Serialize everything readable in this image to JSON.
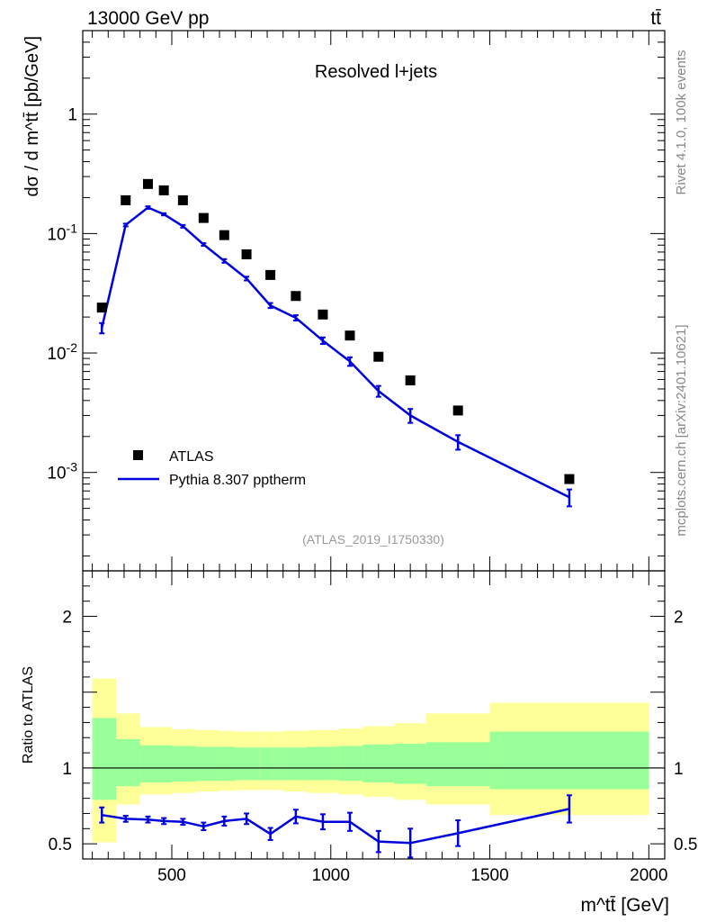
{
  "header": {
    "collision": "13000 GeV pp",
    "process": "tt̄",
    "rivet_info": "Rivet 4.1.0,  100k events",
    "site_info": "mcplots.cern.ch [arXiv:2401.10621]"
  },
  "chart_data": [
    {
      "type": "scatter",
      "title": "Resolved l+jets",
      "analysis_tag": "(ATLAS_2019_I1750330)",
      "ylabel": "dσ / d m^tt̄ [pb/GeV]",
      "yscale": "log",
      "ylim": [
        0.00015,
        5
      ],
      "xlim": [
        220,
        2050
      ],
      "ytick_labels": [
        "10^-3",
        "10^-2",
        "10^-1",
        "1"
      ],
      "ytick_values": [
        0.001,
        0.01,
        0.1,
        1
      ],
      "legend_position": "lower-left",
      "series": [
        {
          "name": "ATLAS",
          "kind": "markers",
          "color": "#000000",
          "x": [
            280,
            355,
            425,
            475,
            535,
            600,
            665,
            735,
            810,
            890,
            975,
            1060,
            1150,
            1250,
            1400,
            1750
          ],
          "y": [
            0.024,
            0.19,
            0.26,
            0.23,
            0.19,
            0.135,
            0.097,
            0.067,
            0.045,
            0.03,
            0.021,
            0.014,
            0.0093,
            0.0059,
            0.0033,
            0.00088
          ]
        },
        {
          "name": "Pythia 8.307 pptherm",
          "kind": "line",
          "color": "#0000dd",
          "x": [
            280,
            355,
            425,
            475,
            535,
            600,
            665,
            735,
            810,
            890,
            975,
            1060,
            1150,
            1250,
            1400,
            1750
          ],
          "y": [
            0.0162,
            0.118,
            0.165,
            0.145,
            0.115,
            0.081,
            0.059,
            0.042,
            0.025,
            0.0197,
            0.0127,
            0.0085,
            0.0048,
            0.003,
            0.0018,
            0.00062
          ],
          "yerr": [
            0.0016,
            0.003,
            0.004,
            0.003,
            0.003,
            0.002,
            0.002,
            0.0015,
            0.0012,
            0.001,
            0.0008,
            0.0007,
            0.0005,
            0.0004,
            0.00025,
            0.0001
          ]
        }
      ]
    },
    {
      "type": "line",
      "ylabel": "Ratio to ATLAS",
      "xlabel": "m^tt̄ [GeV]",
      "ylim": [
        0.4,
        2.3
      ],
      "xlim": [
        220,
        2050
      ],
      "ytick_labels": [
        "0.5",
        "1",
        "2"
      ],
      "ytick_values": [
        0.5,
        1,
        2
      ],
      "xtick_labels": [
        "500",
        "1000",
        "1500",
        "2000"
      ],
      "xtick_values": [
        500,
        1000,
        1500,
        2000
      ],
      "reference_line": 1,
      "uncertainty_bands": {
        "bin_edges": [
          250,
          325,
          400,
          500,
          575,
          650,
          700,
          775,
          850,
          925,
          1025,
          1100,
          1200,
          1300,
          1500,
          2000
        ],
        "inner_lo": [
          0.79,
          0.88,
          0.905,
          0.91,
          0.915,
          0.915,
          0.92,
          0.92,
          0.92,
          0.92,
          0.915,
          0.905,
          0.895,
          0.88,
          0.86
        ],
        "inner_hi": [
          1.33,
          1.19,
          1.15,
          1.145,
          1.14,
          1.14,
          1.135,
          1.135,
          1.135,
          1.14,
          1.145,
          1.155,
          1.16,
          1.17,
          1.24
        ],
        "outer_lo": [
          0.51,
          0.76,
          0.825,
          0.835,
          0.845,
          0.85,
          0.855,
          0.855,
          0.845,
          0.835,
          0.825,
          0.81,
          0.79,
          0.76,
          0.69
        ],
        "outer_hi": [
          1.59,
          1.36,
          1.27,
          1.255,
          1.25,
          1.245,
          1.24,
          1.24,
          1.245,
          1.25,
          1.26,
          1.275,
          1.295,
          1.36,
          1.43
        ],
        "inner_color": "#99ff99",
        "outer_color": "#ffff99"
      },
      "series": [
        {
          "name": "Pythia 8.307 pptherm / ATLAS",
          "color": "#0000dd",
          "x": [
            280,
            355,
            425,
            475,
            535,
            600,
            665,
            735,
            810,
            890,
            975,
            1060,
            1150,
            1250,
            1400,
            1750
          ],
          "y": [
            0.69,
            0.665,
            0.66,
            0.65,
            0.645,
            0.615,
            0.65,
            0.665,
            0.565,
            0.68,
            0.645,
            0.645,
            0.515,
            0.505,
            0.57,
            0.73
          ],
          "yerr": [
            0.05,
            0.02,
            0.02,
            0.02,
            0.02,
            0.025,
            0.03,
            0.035,
            0.04,
            0.045,
            0.05,
            0.06,
            0.07,
            0.095,
            0.085,
            0.09
          ]
        }
      ]
    }
  ]
}
